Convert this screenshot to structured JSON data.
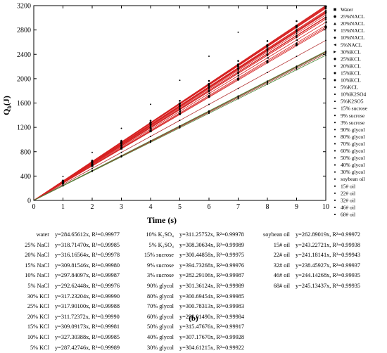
{
  "chart_data": {
    "type": "scatter",
    "title": "",
    "xlabel": "Time (s)",
    "ylabel_main": "Q",
    "ylabel_sub": "b",
    "ylabel_unit": "(J)",
    "xlim": [
      0,
      10
    ],
    "ylim": [
      0,
      3200
    ],
    "xticks": [
      0,
      1,
      2,
      3,
      4,
      5,
      6,
      7,
      8,
      9,
      10
    ],
    "yticks": [
      0,
      400,
      800,
      1200,
      1600,
      2000,
      2400,
      2800,
      3200
    ],
    "grid": false,
    "legend_position": "right-outside",
    "x": [
      1,
      2,
      3,
      4,
      5,
      6,
      7,
      8,
      9,
      10
    ],
    "series": [
      {
        "name": "Water",
        "slope": 284.65612,
        "r2": "0.99977",
        "color": "#000000",
        "marker": "square"
      },
      {
        "name": "25%NACL",
        "slope": 318.7147,
        "r2": "0.99985",
        "color": "#000000",
        "marker": "circle"
      },
      {
        "name": "20%NACL",
        "slope": 316.16564,
        "r2": "0.99978",
        "color": "#000000",
        "marker": "triangle"
      },
      {
        "name": "15%NACL",
        "slope": 309.81546,
        "r2": "0.99980",
        "color": "#000000",
        "marker": "triangle-down"
      },
      {
        "name": "10%NACL",
        "slope": 297.84097,
        "r2": "0.99987",
        "color": "#000000",
        "marker": "diamond"
      },
      {
        "name": "5%NACL",
        "slope": 292.62448,
        "r2": "0.99976",
        "color": "#000000",
        "marker": "triangle-left"
      },
      {
        "name": "30%KCL",
        "slope": 317.23204,
        "r2": "0.99990",
        "color": "#000000",
        "marker": "triangle-right"
      },
      {
        "name": "25%KCL",
        "slope": 317.901,
        "r2": "0.99988",
        "color": "#000000",
        "marker": "hexagon"
      },
      {
        "name": "20%KCL",
        "slope": 311.72372,
        "r2": "0.99990",
        "color": "#000000",
        "marker": "star"
      },
      {
        "name": "15%KCL",
        "slope": 309.09173,
        "r2": "0.99981",
        "color": "#000000",
        "marker": "pentagon"
      },
      {
        "name": "10%KCL",
        "slope": 327.30388,
        "r2": "0.99985",
        "color": "#000000",
        "marker": "circle-small"
      },
      {
        "name": "5%KCL",
        "slope": 287.42746,
        "r2": "0.99989",
        "color": "#000000",
        "marker": "dot"
      },
      {
        "name": "10%K2SO4",
        "slope": 311.25752,
        "r2": "0.99978",
        "color": "#000000",
        "marker": "dot"
      },
      {
        "name": "5%K2SO5",
        "slope": 308.30634,
        "r2": "0.99989",
        "color": "#000000",
        "marker": "dot"
      },
      {
        "name": "15% sucrose",
        "slope": 300.44858,
        "r2": "0.99975",
        "color": "#000000",
        "marker": "dash"
      },
      {
        "name": "9% sucrose",
        "slope": 394.73268,
        "r2": "0.99976",
        "color": "#000000",
        "marker": "dot"
      },
      {
        "name": "3% sucrose",
        "slope": 282.29106,
        "r2": "0.99987",
        "color": "#000000",
        "marker": "dot"
      },
      {
        "name": "90% glycol",
        "slope": 301.36124,
        "r2": "0.99989",
        "color": "#000000",
        "marker": "dot"
      },
      {
        "name": "80% glycol",
        "slope": 300.69454,
        "r2": "0.99985",
        "color": "#000000",
        "marker": "dot"
      },
      {
        "name": "70% glycol",
        "slope": 300.78313,
        "r2": "0.99983",
        "color": "#000000",
        "marker": "dot"
      },
      {
        "name": "60% glycol",
        "slope": 298.0149,
        "r2": "0.99984",
        "color": "#000000",
        "marker": "dot"
      },
      {
        "name": "50% glycol",
        "slope": 315.47676,
        "r2": "0.99917",
        "color": "#000000",
        "marker": "dot"
      },
      {
        "name": "40% glycol",
        "slope": 307.1767,
        "r2": "0.99928",
        "color": "#000000",
        "marker": "dot"
      },
      {
        "name": "30% glycol",
        "slope": 304.61215,
        "r2": "0.99922",
        "color": "#000000",
        "marker": "dot"
      },
      {
        "name": "soybean oil",
        "slope": 262.89019,
        "r2": "0.99972",
        "color": "#000000",
        "marker": "dot"
      },
      {
        "name": "15# oil",
        "slope": 243.22721,
        "r2": "0.99938",
        "color": "#000000",
        "marker": "dot"
      },
      {
        "name": "22# oil",
        "slope": 241.18141,
        "r2": "0.99943",
        "color": "#000000",
        "marker": "dot"
      },
      {
        "name": "32# oil",
        "slope": 238.45927,
        "r2": "0.99937",
        "color": "#000000",
        "marker": "dot"
      },
      {
        "name": "46# oil",
        "slope": 244.14268,
        "r2": "0.99935",
        "color": "#000000",
        "marker": "dot"
      },
      {
        "name": "68# oil",
        "slope": 245.13437,
        "r2": "0.99935",
        "color": "#000000",
        "marker": "dot"
      }
    ],
    "fit_line_color_main": "#d62222",
    "fit_line_color_low": "#4a8a3a",
    "equation_table": [
      [
        {
          "name": "water",
          "eq": "y=284.65612x, R²=0.99977"
        },
        {
          "name": "25% NaCl",
          "eq": "y=318.71470x, R²=0.99985"
        },
        {
          "name": "20% NaCl",
          "eq": "y=316.16564x, R²=0.99978"
        },
        {
          "name": "15% NaCl",
          "eq": "y=309.81546x, R²=0.99980"
        },
        {
          "name": "10% NaCl",
          "eq": "y=297.84097x, R²=0.99987"
        },
        {
          "name": "5% NaCl",
          "eq": "y=292.62448x, R²=0.99976"
        },
        {
          "name": "30% KCl",
          "eq": "y=317.23204x, R²=0.99990"
        },
        {
          "name": "25% KCl",
          "eq": "y=317.90100x, R²=0.99988"
        },
        {
          "name": "20% KCl",
          "eq": "y=311.72372x, R²=0.99990"
        },
        {
          "name": "15% KCl",
          "eq": "y=309.09173x, R²=0.99981"
        },
        {
          "name": "10% KCl",
          "eq": "y=327.30388x, R²=0.99985"
        },
        {
          "name": "5% KCl",
          "eq": "y=287.42746x, R²=0.99989"
        }
      ],
      [
        {
          "name": "10% K₂SO₄",
          "eq": "y=311.25752x, R²=0.99978"
        },
        {
          "name": "5% K₂SO₄",
          "eq": "y=308.30634x, R²=0.99989"
        },
        {
          "name": "15% sucrose",
          "eq": "y=300.44858x, R²=0.99975"
        },
        {
          "name": "9% sucrose",
          "eq": "y=394.73268x, R²=0.99976"
        },
        {
          "name": "3% sucrose",
          "eq": "y=282.29106x, R²=0.99987"
        },
        {
          "name": "90% glycol",
          "eq": "y=301.36124x, R²=0.99989"
        },
        {
          "name": "80% glycol",
          "eq": "y=300.69454x, R²=0.99985"
        },
        {
          "name": "70% glycol",
          "eq": "y=300.78313x, R²=0.99983"
        },
        {
          "name": "60% glycol",
          "eq": "y=298.01490x, R²=0.99984"
        },
        {
          "name": "50% glycol",
          "eq": "y=315.47676x, R²=0.99917"
        },
        {
          "name": "40% glycol",
          "eq": "y=307.17670x, R²=0.99928"
        },
        {
          "name": "30% glycol",
          "eq": "y=304.61215x, R²=0.99922"
        }
      ],
      [
        {
          "name": "soybean oil",
          "eq": "y=262.89019x, R²=0.99972"
        },
        {
          "name": "15# oil",
          "eq": "y=243.22721x, R²=0.99938"
        },
        {
          "name": "22# oil",
          "eq": "y=241.18141x, R²=0.99943"
        },
        {
          "name": "32# oil",
          "eq": "y=238.45927x, R²=0.99937"
        },
        {
          "name": "46# oil",
          "eq": "y=244.14268x, R²=0.99935"
        },
        {
          "name": "68# oil",
          "eq": "y=245.13437x, R²=0.99935"
        }
      ]
    ]
  },
  "caption": "(b)"
}
